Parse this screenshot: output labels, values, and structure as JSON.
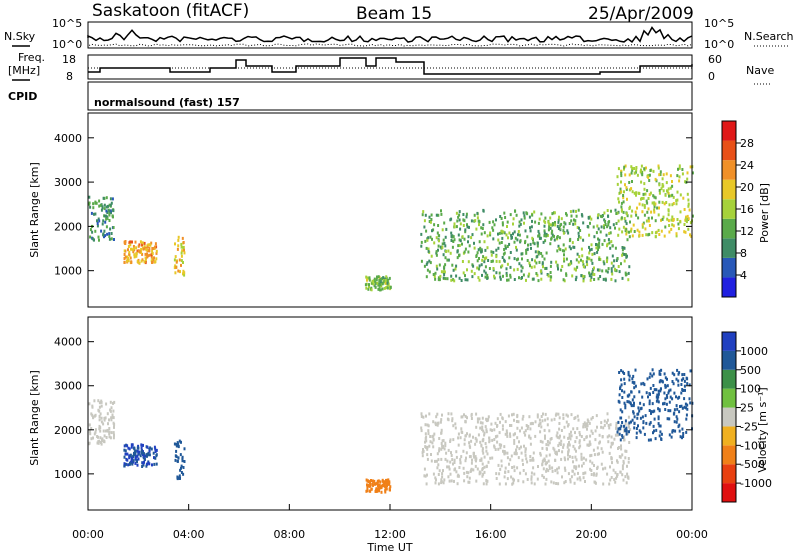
{
  "header": {
    "station": "Saskatoon (fitACF)",
    "beam": "Beam 15",
    "date": "25/Apr/2009"
  },
  "panel_labels": {
    "nsky": "N.Sky",
    "nsearch": "N.Search",
    "freq_line1": "Freq.",
    "freq_line2": "[MHz]",
    "nave": "Nave",
    "cpid": "CPID",
    "cpid_value": "normalsound (fast) 157",
    "nsky_top": "10^5",
    "nsky_bottom": "10^0",
    "nsearch_top": "10^5",
    "nsearch_bottom": "10^0",
    "freq_top": "18",
    "freq_bottom": "8",
    "nave_top": "60",
    "nave_bottom": "0"
  },
  "colors": {
    "power_scale": [
      "#2020e0",
      "#2858b8",
      "#3f8c66",
      "#5aaa4a",
      "#a6d23a",
      "#e8c828",
      "#f09028",
      "#e85018",
      "#e01818"
    ],
    "velocity_scale": [
      "#2040c0",
      "#205898",
      "#3c9048",
      "#70c040",
      "#c8c8c0",
      "#f0b020",
      "#f08018",
      "#e84010",
      "#e01010"
    ]
  },
  "chart_data": [
    {
      "type": "heatmap",
      "name": "power",
      "ylabel": "Slant Range [km]",
      "yticks": [
        1000,
        2000,
        3000,
        4000
      ],
      "ylim": [
        180,
        4560
      ],
      "xlim": [
        "00:00",
        "24:00"
      ],
      "colorbar": {
        "label": "Power [dB]",
        "ticks": [
          "4",
          "8",
          "12",
          "16",
          "20",
          "24",
          "28"
        ],
        "range": [
          0,
          32
        ]
      },
      "echo_regions": [
        {
          "t0": 0.0,
          "t1": 1.0,
          "r0": 1700,
          "r1": 2700,
          "value": 10
        },
        {
          "t0": 1.4,
          "t1": 2.7,
          "r0": 1200,
          "r1": 1700,
          "value": 22
        },
        {
          "t0": 3.4,
          "t1": 3.8,
          "r0": 900,
          "r1": 1800,
          "value": 20
        },
        {
          "t0": 11.0,
          "t1": 12.0,
          "r0": 600,
          "r1": 900,
          "value": 14
        },
        {
          "t0": 13.2,
          "t1": 21.5,
          "r0": 800,
          "r1": 2400,
          "value": 12
        },
        {
          "t0": 21.0,
          "t1": 24.0,
          "r0": 1800,
          "r1": 3400,
          "value": 16
        }
      ]
    },
    {
      "type": "heatmap",
      "name": "velocity",
      "ylabel": "Slant Range [km]",
      "xlabel": "Time UT",
      "yticks": [
        1000,
        2000,
        3000,
        4000
      ],
      "ylim": [
        180,
        4560
      ],
      "xticks": [
        "00:00",
        "04:00",
        "08:00",
        "12:00",
        "16:00",
        "20:00",
        "00:00"
      ],
      "xlim": [
        "00:00",
        "24:00"
      ],
      "colorbar": {
        "label": "Velocity [m s⁻¹]",
        "ticks": [
          "1000",
          "500",
          "100",
          "25",
          "-25",
          "-100",
          "-500",
          "-1000"
        ]
      },
      "echo_regions": [
        {
          "t0": 0.0,
          "t1": 1.0,
          "r0": 1700,
          "r1": 2700,
          "value": 0
        },
        {
          "t0": 1.4,
          "t1": 2.7,
          "r0": 1200,
          "r1": 1700,
          "value": 500
        },
        {
          "t0": 3.4,
          "t1": 3.8,
          "r0": 900,
          "r1": 1800,
          "value": 300
        },
        {
          "t0": 11.0,
          "t1": 12.0,
          "r0": 600,
          "r1": 900,
          "value": -200
        },
        {
          "t0": 13.2,
          "t1": 21.5,
          "r0": 800,
          "r1": 2400,
          "value": 0
        },
        {
          "t0": 21.0,
          "t1": 24.0,
          "r0": 1800,
          "r1": 3400,
          "value": 150
        }
      ]
    }
  ]
}
